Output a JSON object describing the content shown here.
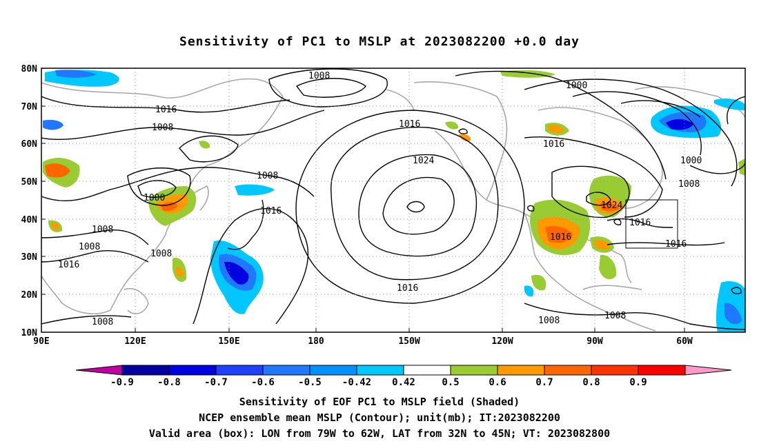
{
  "title": "Sensitivity of PC1 to MSLP at 2023082200 +0.0 day",
  "map": {
    "lat_ticks": [
      "80N",
      "70N",
      "60N",
      "50N",
      "40N",
      "30N",
      "20N",
      "10N"
    ],
    "lon_ticks": [
      "90E",
      "120E",
      "150E",
      "180",
      "150W",
      "120W",
      "90W",
      "60W"
    ],
    "contour_labels": [
      "1008",
      "1016",
      "1008",
      "1000",
      "1008",
      "1008",
      "1016",
      "1008",
      "1008",
      "1016",
      "1024",
      "1016",
      "1016",
      "1008",
      "1000",
      "1016",
      "1000",
      "1008",
      "1024",
      "1016",
      "1016",
      "1016",
      "1008",
      "1008"
    ],
    "box_label": "Valid area box"
  },
  "colorbar": {
    "labels": [
      "-0.9",
      "-0.8",
      "-0.7",
      "-0.6",
      "-0.5",
      "-0.42",
      "0.42",
      "0.5",
      "0.6",
      "0.7",
      "0.8",
      "0.9"
    ],
    "colors": [
      "#c000a0",
      "#0000a0",
      "#0000e0",
      "#2040ff",
      "#2078ff",
      "#0090ff",
      "#00c8ff",
      "#ffffff",
      "#99cc33",
      "#ff9900",
      "#ff6600",
      "#ff3300",
      "#ff0000",
      "#ff99cc"
    ]
  },
  "captions": {
    "line1": "Sensitivity of EOF PC1 to MSLP field (Shaded)",
    "line2": "NCEP ensemble mean MSLP (Contour); unit(mb); IT:2023082200",
    "line3": "Valid area (box): LON from 79W to 62W, LAT from 32N to 45N; VT: 2023082800"
  }
}
